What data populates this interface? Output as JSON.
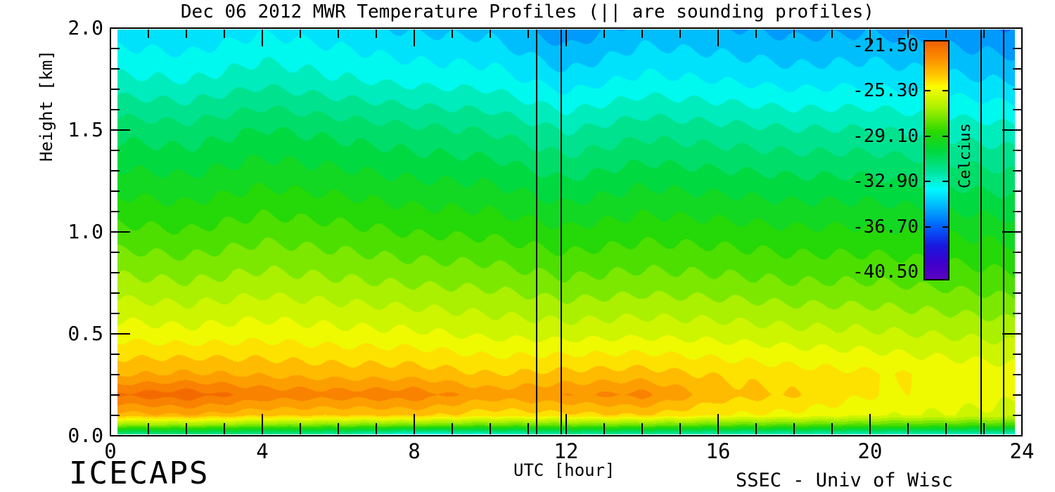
{
  "title": "Dec 06 2012 MWR Temperature Profiles (|| are sounding profiles)",
  "footer": {
    "left": "ICECAPS",
    "right": "SSEC - Univ of Wisc"
  },
  "axes": {
    "x": {
      "label": "UTC [hour]",
      "tick_labels": [
        "0",
        "4",
        "8",
        "12",
        "16",
        "20",
        "24"
      ],
      "min": 0,
      "max": 24,
      "minor_step": 1,
      "major_step": 4
    },
    "y": {
      "label": "Height [km]",
      "tick_labels": [
        "2.0",
        "1.5",
        "1.0",
        "0.5",
        "0.0"
      ],
      "min": 0,
      "max": 2,
      "minor_step": 0.1,
      "major_step": 0.5
    }
  },
  "colorbar": {
    "title": "Celcius",
    "labels": [
      "-21.50",
      "-25.30",
      "-29.10",
      "-32.90",
      "-36.70",
      "-40.50"
    ],
    "top_value": -21.5,
    "bottom_value": -40.5
  },
  "chart_data": {
    "type": "heatmap",
    "title": "Dec 06 2012 MWR Temperature Profiles (|| are sounding profiles)",
    "xlabel": "UTC [hour]",
    "ylabel": "Height [km]",
    "xlim": [
      0,
      24
    ],
    "ylim": [
      0,
      2
    ],
    "units": "Celcius",
    "x_hours": [
      0,
      2,
      4,
      6,
      8,
      10,
      12,
      14,
      16,
      18,
      20,
      22,
      24
    ],
    "heights_km": [
      2.0,
      1.75,
      1.5,
      1.25,
      1.0,
      0.75,
      0.5,
      0.3,
      0.2,
      0.1,
      0.05,
      0.0
    ],
    "temperature_c": [
      [
        -33.9,
        -34.1,
        -33.6,
        -33.9,
        -34.3,
        -34.4,
        -35.4,
        -34.6,
        -34.8,
        -35.1,
        -35.0,
        -35.3,
        -35.6
      ],
      [
        -32.6,
        -32.8,
        -32.3,
        -32.7,
        -33.0,
        -33.1,
        -33.9,
        -33.3,
        -33.5,
        -33.8,
        -33.7,
        -34.0,
        -34.3
      ],
      [
        -30.9,
        -31.1,
        -30.6,
        -30.9,
        -31.2,
        -31.4,
        -32.1,
        -31.6,
        -31.8,
        -32.0,
        -32.0,
        -32.3,
        -32.6
      ],
      [
        -29.6,
        -29.8,
        -29.4,
        -29.6,
        -29.9,
        -30.0,
        -30.6,
        -30.1,
        -30.3,
        -30.5,
        -30.5,
        -30.8,
        -31.1
      ],
      [
        -28.3,
        -28.5,
        -28.1,
        -28.3,
        -28.6,
        -28.7,
        -29.1,
        -28.8,
        -28.9,
        -29.1,
        -29.1,
        -29.3,
        -29.6
      ],
      [
        -26.9,
        -27.1,
        -26.8,
        -27.0,
        -27.2,
        -27.3,
        -27.7,
        -27.5,
        -27.6,
        -27.8,
        -27.8,
        -28.0,
        -28.3
      ],
      [
        -25.3,
        -25.5,
        -25.3,
        -25.5,
        -25.6,
        -25.9,
        -26.0,
        -25.9,
        -26.0,
        -26.2,
        -26.3,
        -26.5,
        -26.7
      ],
      [
        -23.7,
        -23.5,
        -23.7,
        -23.9,
        -23.9,
        -24.3,
        -24.1,
        -24.0,
        -24.4,
        -24.7,
        -24.9,
        -25.2,
        -25.4
      ],
      [
        -22.1,
        -21.8,
        -22.5,
        -22.6,
        -22.5,
        -23.3,
        -23.0,
        -22.7,
        -24.0,
        -24.3,
        -25.0,
        -25.3,
        -25.6
      ],
      [
        -23.9,
        -23.6,
        -24.1,
        -24.2,
        -24.1,
        -24.7,
        -24.5,
        -24.3,
        -25.0,
        -25.2,
        -25.6,
        -25.8,
        -26.0
      ],
      [
        -27.4,
        -27.2,
        -27.5,
        -27.6,
        -27.7,
        -27.9,
        -27.8,
        -27.7,
        -28.0,
        -28.1,
        -28.2,
        -28.3,
        -28.4
      ],
      [
        -32.4,
        -32.2,
        -32.5,
        -32.7,
        -34.0,
        -33.4,
        -32.8,
        -32.8,
        -33.0,
        -33.0,
        -33.1,
        -33.2,
        -33.3
      ]
    ],
    "sounding_lines_utc": [
      11.2,
      11.85,
      22.9,
      23.5
    ],
    "colormap": {
      "domain": [
        -21.5,
        -40.5
      ],
      "bands": 27,
      "stops": [
        [
          0.0,
          "#f06000"
        ],
        [
          0.07,
          "#fc8c00"
        ],
        [
          0.14,
          "#ffc400"
        ],
        [
          0.19,
          "#fcfc00"
        ],
        [
          0.28,
          "#a8f000"
        ],
        [
          0.38,
          "#2ad800"
        ],
        [
          0.46,
          "#00d83c"
        ],
        [
          0.55,
          "#00e49c"
        ],
        [
          0.62,
          "#00fcfc"
        ],
        [
          0.7,
          "#00b0fc"
        ],
        [
          0.78,
          "#0060fc"
        ],
        [
          0.86,
          "#1818e0"
        ],
        [
          0.93,
          "#3c00cc"
        ],
        [
          1.0,
          "#5a00c0"
        ]
      ]
    },
    "grid": false,
    "legend_position": "right-inside"
  }
}
